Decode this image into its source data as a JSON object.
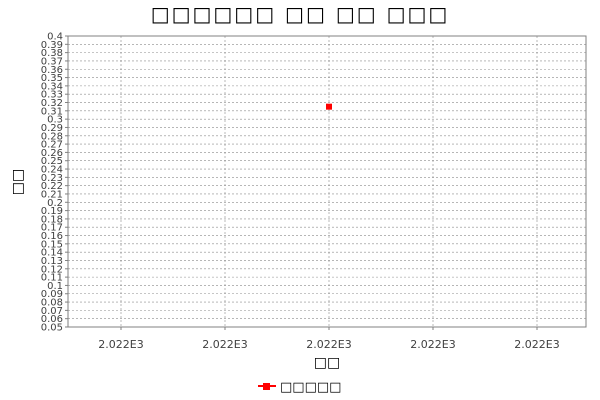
{
  "chart_data": {
    "type": "scatter",
    "title": "□□□□□□ □□ □□ □□□",
    "xlabel": "□□",
    "ylabel": "□□",
    "x_tick_labels": [
      "2.022E3",
      "2.022E3",
      "2.022E3",
      "2.022E3",
      "2.022E3"
    ],
    "y_ticks": [
      "0.4",
      "0.39",
      "0.38",
      "0.37",
      "0.36",
      "0.35",
      "0.34",
      "0.33",
      "0.32",
      "0.31",
      "0.3",
      "0.29",
      "0.28",
      "0.27",
      "0.26",
      "0.25",
      "0.24",
      "0.23",
      "0.22",
      "0.21",
      "0.2",
      "0.19",
      "0.18",
      "0.17",
      "0.16",
      "0.15",
      "0.14",
      "0.13",
      "0.12",
      "0.11",
      "0.1",
      "0.09",
      "0.08",
      "0.07",
      "0.06",
      "0.05"
    ],
    "ylim": [
      0.05,
      0.4
    ],
    "grid": true,
    "legend_position": "bottom-center",
    "series": [
      {
        "name": "□□□□□",
        "color": "#ff0000",
        "marker": "square",
        "points": [
          {
            "x": 2022,
            "y": 0.315
          }
        ]
      }
    ]
  }
}
